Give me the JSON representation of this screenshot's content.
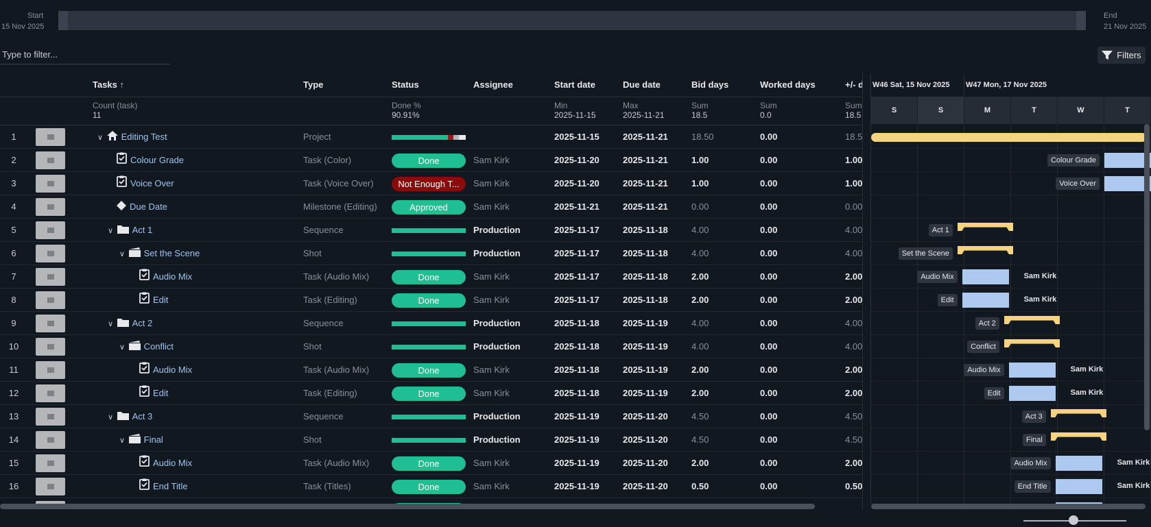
{
  "range": {
    "start_label": "Start",
    "start_date": "15 Nov 2025",
    "end_label": "End",
    "end_date": "21 Nov 2025"
  },
  "filter": {
    "placeholder": "Type to filter...",
    "filters_label": "Filters"
  },
  "columns": {
    "tasks": "Tasks",
    "type": "Type",
    "status": "Status",
    "assignee": "Assignee",
    "start": "Start date",
    "due": "Due date",
    "bid": "Bid days",
    "worked": "Worked days",
    "diff": "+/- d"
  },
  "aggregates": {
    "tasks_label": "Count (task)",
    "tasks_value": "11",
    "status_label": "Done %",
    "status_value": "90.91%",
    "start_label": "Min",
    "start_value": "2025-11-15",
    "due_label": "Max",
    "due_value": "2025-11-21",
    "bid_label": "Sum",
    "bid_value": "18.5",
    "worked_label": "Sum",
    "worked_value": "0.0",
    "diff_label": "Sum",
    "diff_value": "18.5"
  },
  "rows": [
    {
      "n": "1",
      "name": "Editing Test",
      "type": "Project",
      "status": "",
      "assignee": "",
      "start": "2025-11-15",
      "due": "2025-11-21",
      "bid": "18.50",
      "worked": "0.00",
      "diff": "18.5"
    },
    {
      "n": "2",
      "name": "Colour Grade",
      "type": "Task (Color)",
      "status": "Done",
      "assignee": "Sam Kirk",
      "start": "2025-11-20",
      "due": "2025-11-21",
      "bid": "1.00",
      "worked": "0.00",
      "diff": "1.00"
    },
    {
      "n": "3",
      "name": "Voice Over",
      "type": "Task (Voice Over)",
      "status": "Not Enough T...",
      "assignee": "Sam Kirk",
      "start": "2025-11-20",
      "due": "2025-11-21",
      "bid": "1.00",
      "worked": "0.00",
      "diff": "1.00"
    },
    {
      "n": "4",
      "name": "Due Date",
      "type": "Milestone (Editing)",
      "status": "Approved",
      "assignee": "Sam Kirk",
      "start": "2025-11-21",
      "due": "2025-11-21",
      "bid": "0.00",
      "worked": "0.00",
      "diff": "0.00"
    },
    {
      "n": "5",
      "name": "Act 1",
      "type": "Sequence",
      "status": "",
      "assignee": "Production",
      "start": "2025-11-17",
      "due": "2025-11-18",
      "bid": "4.00",
      "worked": "0.00",
      "diff": "4.00"
    },
    {
      "n": "6",
      "name": "Set the Scene",
      "type": "Shot",
      "status": "",
      "assignee": "Production",
      "start": "2025-11-17",
      "due": "2025-11-18",
      "bid": "4.00",
      "worked": "0.00",
      "diff": "4.00"
    },
    {
      "n": "7",
      "name": "Audio Mix",
      "type": "Task (Audio Mix)",
      "status": "Done",
      "assignee": "Sam Kirk",
      "start": "2025-11-17",
      "due": "2025-11-18",
      "bid": "2.00",
      "worked": "0.00",
      "diff": "2.00"
    },
    {
      "n": "8",
      "name": "Edit",
      "type": "Task (Editing)",
      "status": "Done",
      "assignee": "Sam Kirk",
      "start": "2025-11-17",
      "due": "2025-11-18",
      "bid": "2.00",
      "worked": "0.00",
      "diff": "2.00"
    },
    {
      "n": "9",
      "name": "Act 2",
      "type": "Sequence",
      "status": "",
      "assignee": "Production",
      "start": "2025-11-18",
      "due": "2025-11-19",
      "bid": "4.00",
      "worked": "0.00",
      "diff": "4.00"
    },
    {
      "n": "10",
      "name": "Conflict",
      "type": "Shot",
      "status": "",
      "assignee": "Production",
      "start": "2025-11-18",
      "due": "2025-11-19",
      "bid": "4.00",
      "worked": "0.00",
      "diff": "4.00"
    },
    {
      "n": "11",
      "name": "Audio Mix",
      "type": "Task (Audio Mix)",
      "status": "Done",
      "assignee": "Sam Kirk",
      "start": "2025-11-18",
      "due": "2025-11-19",
      "bid": "2.00",
      "worked": "0.00",
      "diff": "2.00"
    },
    {
      "n": "12",
      "name": "Edit",
      "type": "Task (Editing)",
      "status": "Done",
      "assignee": "Sam Kirk",
      "start": "2025-11-18",
      "due": "2025-11-19",
      "bid": "2.00",
      "worked": "0.00",
      "diff": "2.00"
    },
    {
      "n": "13",
      "name": "Act 3",
      "type": "Sequence",
      "status": "",
      "assignee": "Production",
      "start": "2025-11-19",
      "due": "2025-11-20",
      "bid": "4.50",
      "worked": "0.00",
      "diff": "4.50"
    },
    {
      "n": "14",
      "name": "Final",
      "type": "Shot",
      "status": "",
      "assignee": "Production",
      "start": "2025-11-19",
      "due": "2025-11-20",
      "bid": "4.50",
      "worked": "0.00",
      "diff": "4.50"
    },
    {
      "n": "15",
      "name": "Audio Mix",
      "type": "Task (Audio Mix)",
      "status": "Done",
      "assignee": "Sam Kirk",
      "start": "2025-11-19",
      "due": "2025-11-20",
      "bid": "2.00",
      "worked": "0.00",
      "diff": "2.00"
    },
    {
      "n": "16",
      "name": "End Title",
      "type": "Task (Titles)",
      "status": "Done",
      "assignee": "Sam Kirk",
      "start": "2025-11-19",
      "due": "2025-11-20",
      "bid": "0.50",
      "worked": "0.00",
      "diff": "0.50"
    }
  ],
  "gantt": {
    "week1": "W46 Sat, 15 Nov 2025",
    "week2": "W47 Mon, 17 Nov 2025",
    "days": [
      "S",
      "S",
      "M",
      "T",
      "W",
      "T"
    ],
    "bars": [
      {
        "label": "Colour Grade",
        "assignee": ""
      },
      {
        "label": "Voice Over",
        "assignee": ""
      },
      {
        "label": "Act 1",
        "assignee": ""
      },
      {
        "label": "Set the Scene",
        "assignee": ""
      },
      {
        "label": "Audio Mix",
        "assignee": "Sam Kirk"
      },
      {
        "label": "Edit",
        "assignee": "Sam Kirk"
      },
      {
        "label": "Act 2",
        "assignee": ""
      },
      {
        "label": "Conflict",
        "assignee": ""
      },
      {
        "label": "Audio Mix",
        "assignee": "Sam Kirk"
      },
      {
        "label": "Edit",
        "assignee": "Sam Kirk"
      },
      {
        "label": "Act 3",
        "assignee": ""
      },
      {
        "label": "Final",
        "assignee": ""
      },
      {
        "label": "Audio Mix",
        "assignee": "Sam Kirk"
      },
      {
        "label": "End Title",
        "assignee": "Sam Kirk"
      }
    ]
  },
  "colors": {
    "done": "#1fbf92",
    "not_enough_time": "#8b0a0a",
    "task_bar": "#aec9f0",
    "summary_bar": "#f5d37f"
  },
  "icons": {
    "project": "home-icon",
    "task": "clipboard-check-icon",
    "milestone": "diamond-icon",
    "sequence": "folder-icon",
    "shot": "clapperboard-icon"
  }
}
